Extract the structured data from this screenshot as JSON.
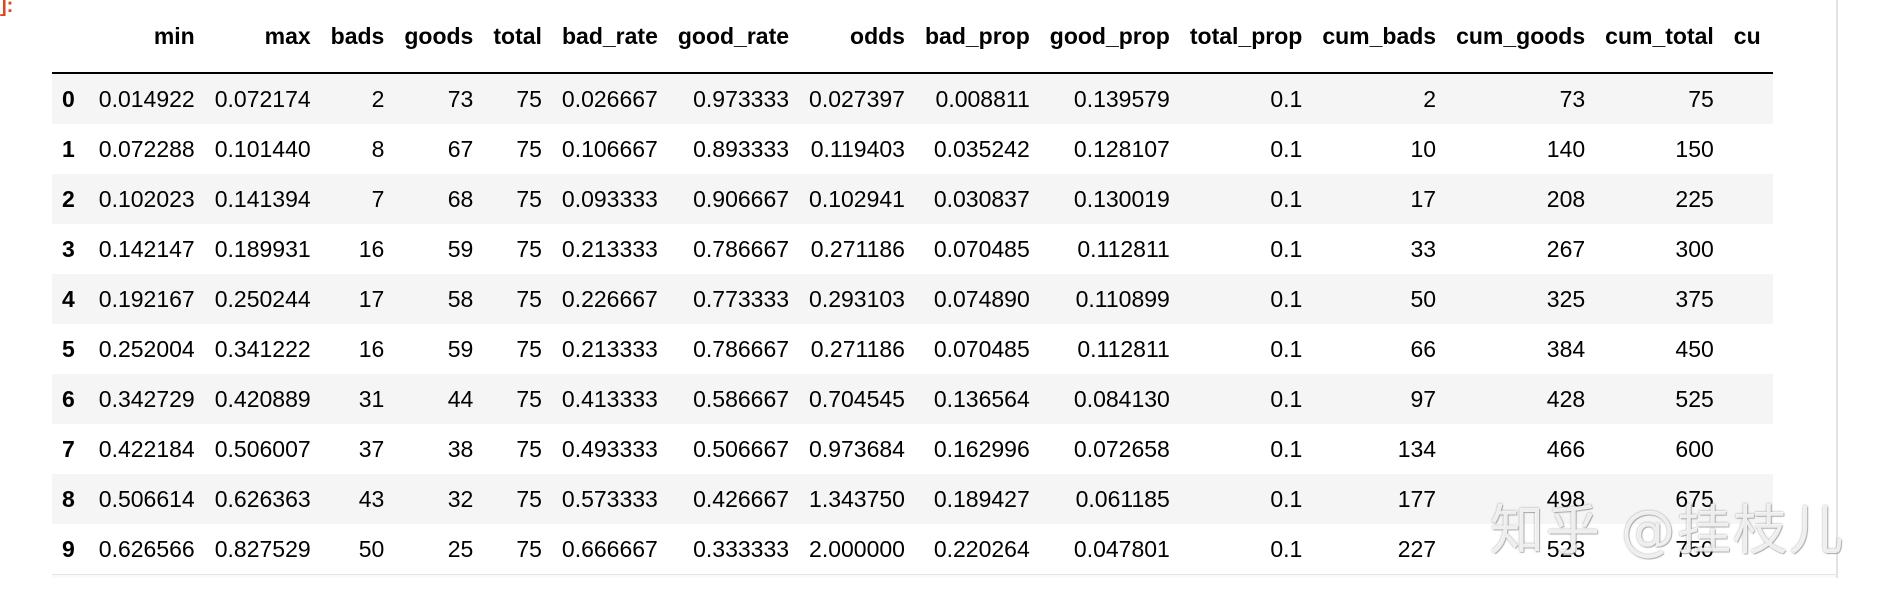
{
  "prompt_mark": "]:",
  "columns": [
    "",
    "min",
    "max",
    "bads",
    "goods",
    "total",
    "bad_rate",
    "good_rate",
    "odds",
    "bad_prop",
    "good_prop",
    "total_prop",
    "cum_bads",
    "cum_goods",
    "cum_total",
    "cu"
  ],
  "rows": [
    {
      "index": "0",
      "cells": [
        "0.014922",
        "0.072174",
        "2",
        "73",
        "75",
        "0.026667",
        "0.973333",
        "0.027397",
        "0.008811",
        "0.139579",
        "0.1",
        "2",
        "73",
        "75",
        ""
      ]
    },
    {
      "index": "1",
      "cells": [
        "0.072288",
        "0.101440",
        "8",
        "67",
        "75",
        "0.106667",
        "0.893333",
        "0.119403",
        "0.035242",
        "0.128107",
        "0.1",
        "10",
        "140",
        "150",
        ""
      ]
    },
    {
      "index": "2",
      "cells": [
        "0.102023",
        "0.141394",
        "7",
        "68",
        "75",
        "0.093333",
        "0.906667",
        "0.102941",
        "0.030837",
        "0.130019",
        "0.1",
        "17",
        "208",
        "225",
        ""
      ]
    },
    {
      "index": "3",
      "cells": [
        "0.142147",
        "0.189931",
        "16",
        "59",
        "75",
        "0.213333",
        "0.786667",
        "0.271186",
        "0.070485",
        "0.112811",
        "0.1",
        "33",
        "267",
        "300",
        ""
      ]
    },
    {
      "index": "4",
      "cells": [
        "0.192167",
        "0.250244",
        "17",
        "58",
        "75",
        "0.226667",
        "0.773333",
        "0.293103",
        "0.074890",
        "0.110899",
        "0.1",
        "50",
        "325",
        "375",
        ""
      ]
    },
    {
      "index": "5",
      "cells": [
        "0.252004",
        "0.341222",
        "16",
        "59",
        "75",
        "0.213333",
        "0.786667",
        "0.271186",
        "0.070485",
        "0.112811",
        "0.1",
        "66",
        "384",
        "450",
        ""
      ]
    },
    {
      "index": "6",
      "cells": [
        "0.342729",
        "0.420889",
        "31",
        "44",
        "75",
        "0.413333",
        "0.586667",
        "0.704545",
        "0.136564",
        "0.084130",
        "0.1",
        "97",
        "428",
        "525",
        ""
      ]
    },
    {
      "index": "7",
      "cells": [
        "0.422184",
        "0.506007",
        "37",
        "38",
        "75",
        "0.493333",
        "0.506667",
        "0.973684",
        "0.162996",
        "0.072658",
        "0.1",
        "134",
        "466",
        "600",
        ""
      ]
    },
    {
      "index": "8",
      "cells": [
        "0.506614",
        "0.626363",
        "43",
        "32",
        "75",
        "0.573333",
        "0.426667",
        "1.343750",
        "0.189427",
        "0.061185",
        "0.1",
        "177",
        "498",
        "675",
        ""
      ]
    },
    {
      "index": "9",
      "cells": [
        "0.626566",
        "0.827529",
        "50",
        "25",
        "75",
        "0.666667",
        "0.333333",
        "2.000000",
        "0.220264",
        "0.047801",
        "0.1",
        "227",
        "523",
        "750",
        ""
      ]
    }
  ],
  "watermark": "知乎 @挂枝儿"
}
